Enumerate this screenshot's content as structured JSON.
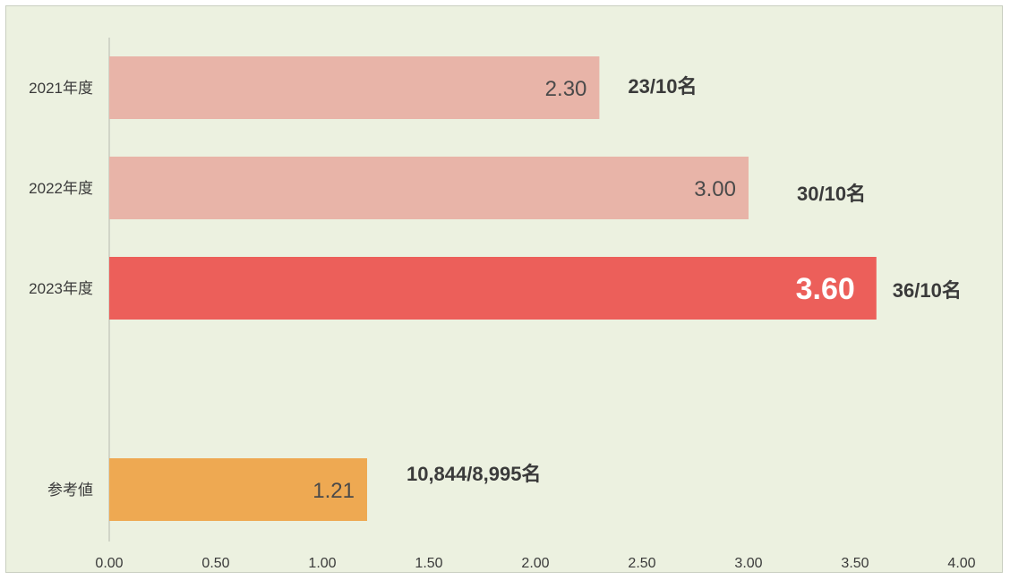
{
  "chart_data": {
    "type": "bar",
    "orientation": "horizontal",
    "categories": [
      "2021年度",
      "2022年度",
      "2023年度",
      "参考値"
    ],
    "values": [
      2.3,
      3.0,
      3.6,
      1.21
    ],
    "value_labels": [
      "2.30",
      "3.00",
      "3.60",
      "1.21"
    ],
    "annotations": [
      "23/10名",
      "30/10名",
      "36/10名",
      "10,844/8,995名"
    ],
    "xlim": [
      0,
      4.0
    ],
    "x_ticks": [
      "0.00",
      "0.50",
      "1.00",
      "1.50",
      "2.00",
      "2.50",
      "3.00",
      "3.50",
      "4.00"
    ],
    "colors": [
      "#e8b4a8",
      "#e8b4a8",
      "#ec5f5a",
      "#eea952"
    ],
    "highlight_index": 2,
    "grid": false,
    "legend": "none",
    "title": "",
    "xlabel": "",
    "ylabel": ""
  }
}
